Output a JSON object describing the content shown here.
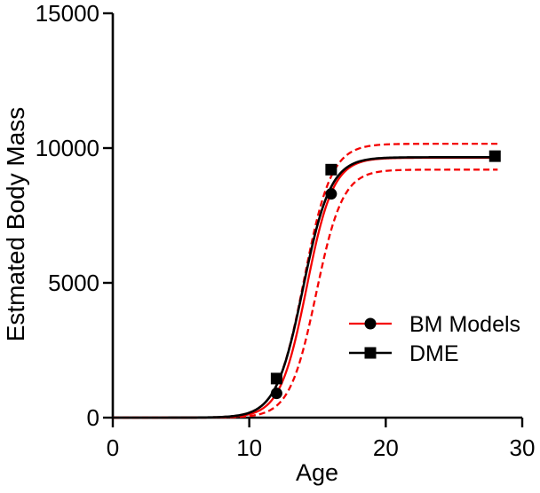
{
  "figure": {
    "background": "#ffffff"
  },
  "chart_data": {
    "type": "line",
    "title": "",
    "xlabel": "Age",
    "ylabel": "Estmated Body Mass",
    "xlim": [
      0,
      30
    ],
    "ylim": [
      0,
      15000
    ],
    "xticks": [
      0,
      10,
      20,
      30
    ],
    "yticks": [
      0,
      5000,
      10000,
      15000
    ],
    "grid": false,
    "legend_position": "inside lower right",
    "colors": {
      "fit_red": "#f40000",
      "black": "#000000"
    },
    "series": [
      {
        "name": "BM Models",
        "marker": "circle",
        "marker_size": 13,
        "marker_color": "#000000",
        "line_color": "#f40000",
        "points": [
          {
            "age": 12,
            "mass": 900
          },
          {
            "age": 16,
            "mass": 8300
          }
        ]
      },
      {
        "name": "DME",
        "marker": "square",
        "marker_size": 13,
        "marker_color": "#000000",
        "line_color": "#000000",
        "points": [
          {
            "age": 12,
            "mass": 1450
          },
          {
            "age": 16,
            "mass": 9200
          },
          {
            "age": 28,
            "mass": 9700
          }
        ]
      }
    ],
    "curves": [
      {
        "name": "BM Models CI upper",
        "style": "dashed",
        "color": "#f40000",
        "width": 2.3,
        "model": "logistic",
        "K": 10160,
        "x0": 14.0,
        "s": 1.0,
        "x_start": 0,
        "x_end": 28.2,
        "plateau": 10150
      },
      {
        "name": "BM Models CI lower",
        "style": "dashed",
        "color": "#f40000",
        "width": 2.3,
        "model": "logistic",
        "K": 9200,
        "x0": 14.9,
        "s": 0.97,
        "x_start": 0,
        "x_end": 28.2,
        "plateau": 9200
      },
      {
        "name": "BM Models growth fit",
        "style": "solid",
        "color": "#f40000",
        "width": 2.3,
        "model": "logistic",
        "K": 9640,
        "x0": 14.2,
        "s": 0.97,
        "x_start": 0,
        "x_end": 28.1,
        "plateau": 9650
      },
      {
        "name": "DME growth fit",
        "style": "solid",
        "color": "#000000",
        "width": 2.6,
        "model": "logistic",
        "K": 9660,
        "x0": 13.95,
        "s": 1.0,
        "x_start": 0,
        "x_end": 28.0,
        "plateau": 9660
      }
    ]
  }
}
